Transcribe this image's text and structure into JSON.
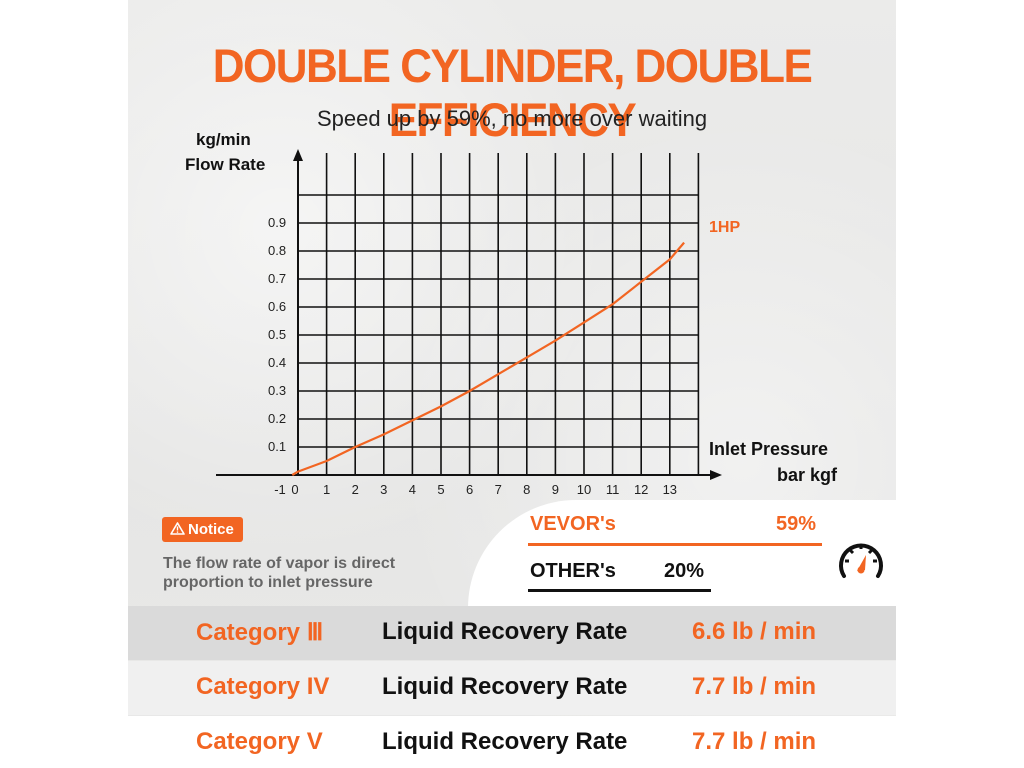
{
  "header": {
    "title": "DOUBLE CYLINDER, DOUBLE EFFICIENCY",
    "subtitle": "Speed up by 59%, no more over waiting"
  },
  "chart_data": {
    "type": "line",
    "title": "Speed up by 59%, no more over waiting",
    "ylabel_line1": "kg/min",
    "ylabel_line2": "Flow Rate",
    "xlabel_line1": "Inlet Pressure",
    "xlabel_line2": "bar kgf",
    "x_ticks": [
      "-1",
      "0",
      "1",
      "2",
      "3",
      "4",
      "5",
      "6",
      "7",
      "8",
      "9",
      "10",
      "11",
      "12",
      "13"
    ],
    "y_ticks": [
      "0.1",
      "0.2",
      "0.3",
      "0.4",
      "0.5",
      "0.6",
      "0.7",
      "0.8",
      "0.9"
    ],
    "xlim": [
      -1,
      14
    ],
    "ylim": [
      0,
      1.0
    ],
    "grid": true,
    "series": [
      {
        "name": "1HP",
        "color": "#f26522",
        "x": [
          -1,
          0,
          1,
          2,
          3,
          4,
          5,
          6,
          7,
          8,
          9,
          10,
          11,
          12,
          13,
          13.5
        ],
        "y": [
          0,
          0.012,
          0.05,
          0.1,
          0.145,
          0.195,
          0.245,
          0.3,
          0.36,
          0.42,
          0.48,
          0.545,
          0.61,
          0.69,
          0.77,
          0.83
        ]
      }
    ]
  },
  "notice": {
    "label": "Notice",
    "icon": "warning-icon",
    "text_line1": "The flow rate of vapor is direct",
    "text_line2": "proportion to inlet pressure"
  },
  "comparison": {
    "vevor_label": "VEVOR's",
    "vevor_value": "59%",
    "other_label": "OTHER's",
    "other_value": "20%",
    "icon": "speedometer-icon"
  },
  "categories": [
    {
      "category": "Category Ⅲ",
      "description": "Liquid Recovery Rate",
      "rate": "6.6 lb / min"
    },
    {
      "category": "Category IV",
      "description": "Liquid Recovery Rate",
      "rate": "7.7 lb / min"
    },
    {
      "category": "Category V",
      "description": "Liquid Recovery Rate",
      "rate": "7.7 lb / min"
    }
  ],
  "colors": {
    "accent": "#f26522",
    "grid": "#111111",
    "text": "#111111",
    "muted": "#666666"
  }
}
